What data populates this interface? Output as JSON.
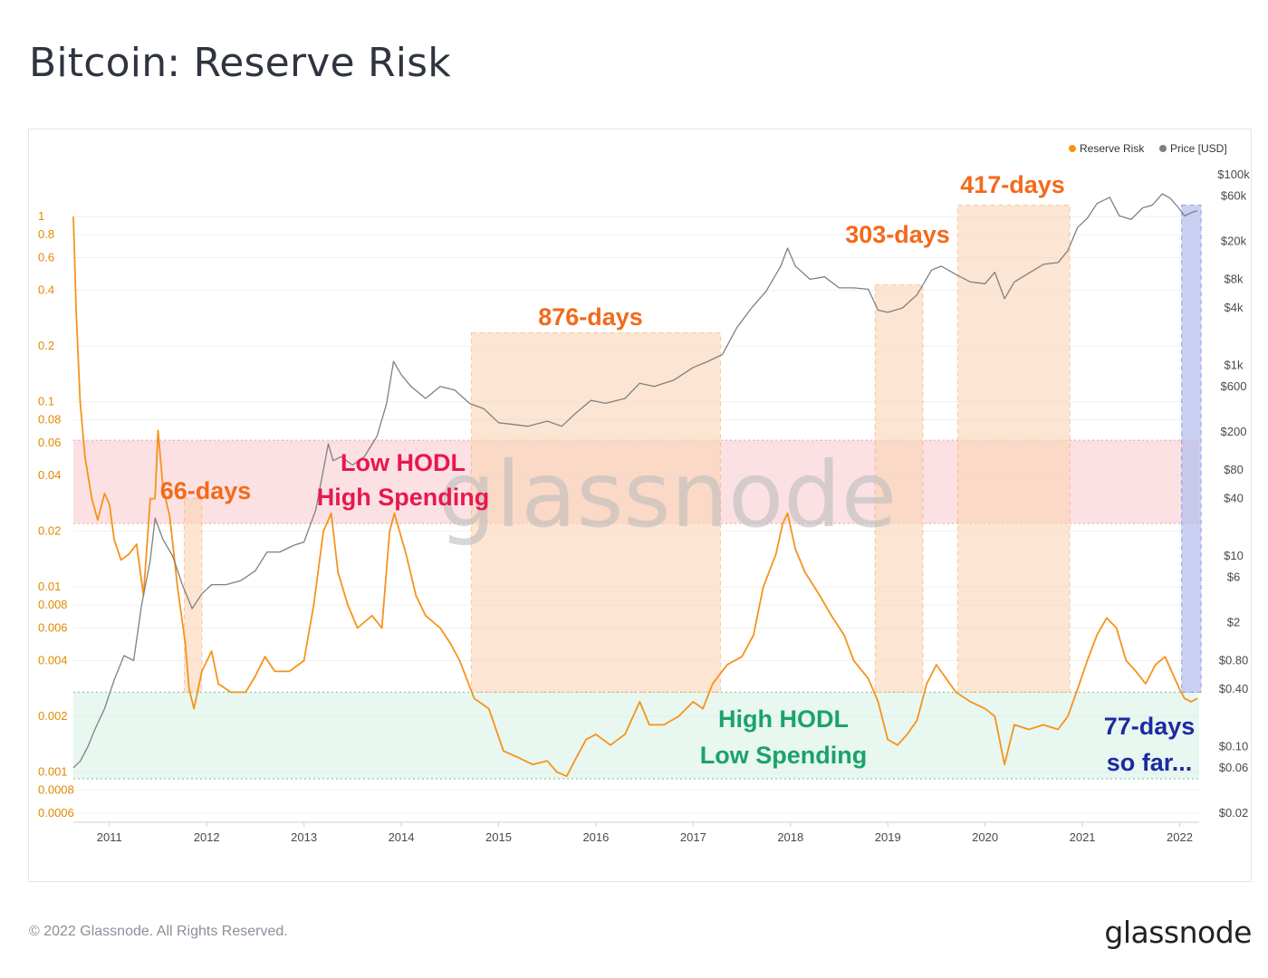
{
  "header": {
    "title": "Bitcoin: Reserve Risk"
  },
  "footer": {
    "copyright": "© 2022 Glassnode. All Rights Reserved.",
    "logo": "glassnode"
  },
  "chart_data": {
    "type": "line",
    "title": "Bitcoin: Reserve Risk",
    "watermark": "glassnode",
    "legend": {
      "placement": "top-right",
      "entries": [
        {
          "name": "Reserve Risk",
          "color": "#f7931a"
        },
        {
          "name": "Price [USD]",
          "color": "#808080"
        }
      ]
    },
    "y_left": {
      "scale": "log",
      "range": [
        0.0006,
        1.2
      ],
      "ticks": [
        1,
        0.8,
        0.6,
        0.4,
        0.2,
        0.1,
        0.08,
        0.06,
        0.04,
        0.02,
        0.01,
        0.008,
        0.006,
        0.004,
        0.002,
        0.001,
        0.0008,
        0.0006
      ],
      "tick_labels": [
        "1",
        "0.8",
        "0.6",
        "0.4",
        "0.2",
        "0.1",
        "0.08",
        "0.06",
        "0.04",
        "0.02",
        "0.01",
        "0.008",
        "0.006",
        "0.004",
        "0.002",
        "0.001",
        "0.0008",
        "0.0006"
      ]
    },
    "y_right": {
      "scale": "log",
      "range": [
        0.02,
        100000
      ],
      "ticks": [
        100000,
        60000,
        20000,
        8000,
        4000,
        1000,
        600,
        200,
        80,
        40,
        10,
        6,
        2,
        0.8,
        0.4,
        0.1,
        0.06,
        0.02
      ],
      "tick_labels": [
        "$100k",
        "$60k",
        "$20k",
        "$8k",
        "$4k",
        "$1k",
        "$600",
        "$200",
        "$80",
        "$40",
        "$10",
        "$6",
        "$2",
        "$0.80",
        "$0.40",
        "$0.10",
        "$0.06",
        "$0.02"
      ]
    },
    "x": {
      "range": [
        2010.63,
        2022.2
      ],
      "ticks": [
        2011,
        2012,
        2013,
        2014,
        2015,
        2016,
        2017,
        2018,
        2019,
        2020,
        2021,
        2022
      ],
      "tick_labels": [
        "2011",
        "2012",
        "2013",
        "2014",
        "2015",
        "2016",
        "2017",
        "2018",
        "2019",
        "2020",
        "2021",
        "2022"
      ]
    },
    "zones": [
      {
        "name": "Low HODL High Spending",
        "y0": 0.022,
        "y1": 0.062,
        "color": "#f8c9cc",
        "labels": [
          "Low HODL",
          "High Spending"
        ],
        "label_color": "#e8174f"
      },
      {
        "name": "High HODL Low Spending",
        "y0": 0.00092,
        "y1": 0.0027,
        "color": "#d5f0e3",
        "labels": [
          "High HODL",
          "Low Spending"
        ],
        "label_color": "#1aa36a"
      }
    ],
    "periods": [
      {
        "label": "66-days",
        "x0": 2011.77,
        "x1": 2011.95,
        "price_top": 40,
        "color": "orange"
      },
      {
        "label": "876-days",
        "x0": 2014.72,
        "x1": 2017.28,
        "price_top": 2200,
        "color": "orange"
      },
      {
        "label": "303-days",
        "x0": 2018.87,
        "x1": 2019.36,
        "price_top": 7000,
        "color": "orange"
      },
      {
        "label": "417-days",
        "x0": 2019.72,
        "x1": 2020.87,
        "price_top": 48000,
        "color": "orange"
      },
      {
        "label": "77-days",
        "label2": "so far...",
        "x0": 2022.02,
        "x1": 2022.22,
        "price_top": 48000,
        "color": "blue"
      }
    ],
    "series": [
      {
        "name": "Reserve Risk",
        "color": "#f7931a",
        "axis": "left",
        "points": [
          [
            2010.63,
            1.0
          ],
          [
            2010.66,
            0.3
          ],
          [
            2010.7,
            0.1
          ],
          [
            2010.75,
            0.05
          ],
          [
            2010.82,
            0.03
          ],
          [
            2010.88,
            0.023
          ],
          [
            2010.95,
            0.032
          ],
          [
            2011.0,
            0.028
          ],
          [
            2011.05,
            0.018
          ],
          [
            2011.12,
            0.014
          ],
          [
            2011.2,
            0.015
          ],
          [
            2011.28,
            0.017
          ],
          [
            2011.35,
            0.009
          ],
          [
            2011.42,
            0.03
          ],
          [
            2011.47,
            0.03
          ],
          [
            2011.5,
            0.07
          ],
          [
            2011.55,
            0.035
          ],
          [
            2011.62,
            0.024
          ],
          [
            2011.7,
            0.01
          ],
          [
            2011.78,
            0.005
          ],
          [
            2011.82,
            0.0028
          ],
          [
            2011.87,
            0.0022
          ],
          [
            2011.95,
            0.0035
          ],
          [
            2012.05,
            0.0045
          ],
          [
            2012.12,
            0.003
          ],
          [
            2012.25,
            0.0027
          ],
          [
            2012.4,
            0.0027
          ],
          [
            2012.5,
            0.0033
          ],
          [
            2012.6,
            0.0042
          ],
          [
            2012.7,
            0.0035
          ],
          [
            2012.85,
            0.0035
          ],
          [
            2013.0,
            0.004
          ],
          [
            2013.1,
            0.008
          ],
          [
            2013.2,
            0.02
          ],
          [
            2013.28,
            0.025
          ],
          [
            2013.35,
            0.012
          ],
          [
            2013.45,
            0.008
          ],
          [
            2013.55,
            0.006
          ],
          [
            2013.7,
            0.007
          ],
          [
            2013.8,
            0.006
          ],
          [
            2013.88,
            0.02
          ],
          [
            2013.93,
            0.025
          ],
          [
            2014.05,
            0.015
          ],
          [
            2014.15,
            0.009
          ],
          [
            2014.25,
            0.007
          ],
          [
            2014.4,
            0.006
          ],
          [
            2014.5,
            0.005
          ],
          [
            2014.6,
            0.004
          ],
          [
            2014.75,
            0.0025
          ],
          [
            2014.9,
            0.0022
          ],
          [
            2015.05,
            0.0013
          ],
          [
            2015.2,
            0.0012
          ],
          [
            2015.35,
            0.0011
          ],
          [
            2015.5,
            0.00115
          ],
          [
            2015.6,
            0.001
          ],
          [
            2015.7,
            0.00095
          ],
          [
            2015.8,
            0.0012
          ],
          [
            2015.9,
            0.0015
          ],
          [
            2016.0,
            0.0016
          ],
          [
            2016.15,
            0.0014
          ],
          [
            2016.3,
            0.0016
          ],
          [
            2016.45,
            0.0024
          ],
          [
            2016.55,
            0.0018
          ],
          [
            2016.7,
            0.0018
          ],
          [
            2016.85,
            0.002
          ],
          [
            2017.0,
            0.0024
          ],
          [
            2017.1,
            0.0022
          ],
          [
            2017.2,
            0.003
          ],
          [
            2017.35,
            0.0038
          ],
          [
            2017.5,
            0.0042
          ],
          [
            2017.62,
            0.0055
          ],
          [
            2017.72,
            0.01
          ],
          [
            2017.85,
            0.015
          ],
          [
            2017.92,
            0.022
          ],
          [
            2017.97,
            0.025
          ],
          [
            2018.05,
            0.016
          ],
          [
            2018.15,
            0.012
          ],
          [
            2018.3,
            0.009
          ],
          [
            2018.42,
            0.007
          ],
          [
            2018.55,
            0.0055
          ],
          [
            2018.65,
            0.004
          ],
          [
            2018.8,
            0.0032
          ],
          [
            2018.9,
            0.0024
          ],
          [
            2019.0,
            0.0015
          ],
          [
            2019.1,
            0.0014
          ],
          [
            2019.2,
            0.0016
          ],
          [
            2019.3,
            0.0019
          ],
          [
            2019.4,
            0.003
          ],
          [
            2019.5,
            0.0038
          ],
          [
            2019.6,
            0.0032
          ],
          [
            2019.7,
            0.0027
          ],
          [
            2019.85,
            0.0024
          ],
          [
            2020.0,
            0.0022
          ],
          [
            2020.1,
            0.002
          ],
          [
            2020.2,
            0.0011
          ],
          [
            2020.3,
            0.0018
          ],
          [
            2020.45,
            0.0017
          ],
          [
            2020.6,
            0.0018
          ],
          [
            2020.75,
            0.0017
          ],
          [
            2020.85,
            0.002
          ],
          [
            2020.95,
            0.0028
          ],
          [
            2021.05,
            0.004
          ],
          [
            2021.15,
            0.0055
          ],
          [
            2021.25,
            0.0068
          ],
          [
            2021.35,
            0.006
          ],
          [
            2021.45,
            0.004
          ],
          [
            2021.55,
            0.0035
          ],
          [
            2021.65,
            0.003
          ],
          [
            2021.75,
            0.0038
          ],
          [
            2021.85,
            0.0042
          ],
          [
            2021.95,
            0.0032
          ],
          [
            2022.0,
            0.0028
          ],
          [
            2022.05,
            0.0025
          ],
          [
            2022.12,
            0.0024
          ],
          [
            2022.18,
            0.0025
          ]
        ]
      },
      {
        "name": "Price [USD]",
        "color": "#808080",
        "axis": "right",
        "points": [
          [
            2010.63,
            0.06
          ],
          [
            2010.7,
            0.07
          ],
          [
            2010.78,
            0.1
          ],
          [
            2010.85,
            0.15
          ],
          [
            2010.95,
            0.25
          ],
          [
            2011.05,
            0.5
          ],
          [
            2011.15,
            0.9
          ],
          [
            2011.25,
            0.8
          ],
          [
            2011.33,
            3
          ],
          [
            2011.42,
            9
          ],
          [
            2011.47,
            25
          ],
          [
            2011.55,
            15
          ],
          [
            2011.65,
            10
          ],
          [
            2011.75,
            5
          ],
          [
            2011.85,
            2.8
          ],
          [
            2011.95,
            4
          ],
          [
            2012.05,
            5
          ],
          [
            2012.2,
            5
          ],
          [
            2012.35,
            5.5
          ],
          [
            2012.5,
            7
          ],
          [
            2012.62,
            11
          ],
          [
            2012.75,
            11
          ],
          [
            2012.9,
            13
          ],
          [
            2013.0,
            14
          ],
          [
            2013.12,
            30
          ],
          [
            2013.25,
            150
          ],
          [
            2013.3,
            100
          ],
          [
            2013.38,
            110
          ],
          [
            2013.5,
            90
          ],
          [
            2013.62,
            110
          ],
          [
            2013.75,
            180
          ],
          [
            2013.85,
            400
          ],
          [
            2013.92,
            1100
          ],
          [
            2014.0,
            800
          ],
          [
            2014.1,
            600
          ],
          [
            2014.25,
            450
          ],
          [
            2014.4,
            600
          ],
          [
            2014.55,
            550
          ],
          [
            2014.7,
            400
          ],
          [
            2014.85,
            350
          ],
          [
            2015.0,
            250
          ],
          [
            2015.15,
            240
          ],
          [
            2015.3,
            230
          ],
          [
            2015.5,
            260
          ],
          [
            2015.65,
            230
          ],
          [
            2015.8,
            320
          ],
          [
            2015.95,
            430
          ],
          [
            2016.1,
            400
          ],
          [
            2016.3,
            450
          ],
          [
            2016.45,
            650
          ],
          [
            2016.6,
            600
          ],
          [
            2016.8,
            700
          ],
          [
            2017.0,
            950
          ],
          [
            2017.15,
            1100
          ],
          [
            2017.3,
            1300
          ],
          [
            2017.45,
            2500
          ],
          [
            2017.6,
            4000
          ],
          [
            2017.75,
            6000
          ],
          [
            2017.9,
            11000
          ],
          [
            2017.97,
            17000
          ],
          [
            2018.05,
            11000
          ],
          [
            2018.2,
            8000
          ],
          [
            2018.35,
            8500
          ],
          [
            2018.5,
            6500
          ],
          [
            2018.65,
            6500
          ],
          [
            2018.8,
            6300
          ],
          [
            2018.9,
            3800
          ],
          [
            2019.0,
            3600
          ],
          [
            2019.15,
            4000
          ],
          [
            2019.3,
            5500
          ],
          [
            2019.45,
            10000
          ],
          [
            2019.55,
            11000
          ],
          [
            2019.7,
            9000
          ],
          [
            2019.85,
            7500
          ],
          [
            2020.0,
            7200
          ],
          [
            2020.1,
            9500
          ],
          [
            2020.2,
            5000
          ],
          [
            2020.3,
            7500
          ],
          [
            2020.45,
            9300
          ],
          [
            2020.6,
            11500
          ],
          [
            2020.75,
            12000
          ],
          [
            2020.85,
            16000
          ],
          [
            2020.95,
            28000
          ],
          [
            2021.05,
            35000
          ],
          [
            2021.15,
            50000
          ],
          [
            2021.28,
            58000
          ],
          [
            2021.38,
            37000
          ],
          [
            2021.5,
            34000
          ],
          [
            2021.62,
            45000
          ],
          [
            2021.72,
            48000
          ],
          [
            2021.82,
            63000
          ],
          [
            2021.9,
            57000
          ],
          [
            2021.98,
            46000
          ],
          [
            2022.05,
            37000
          ],
          [
            2022.12,
            40000
          ],
          [
            2022.18,
            42000
          ]
        ]
      }
    ]
  }
}
